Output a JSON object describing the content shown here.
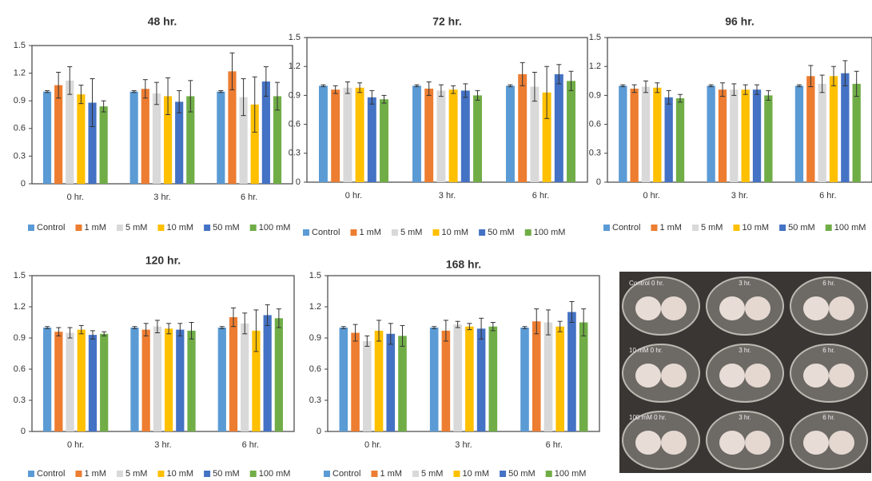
{
  "chart_data": [
    {
      "type": "bar",
      "title": "48 hr.",
      "categories": [
        "0 hr.",
        "3 hr.",
        "6 hr."
      ],
      "ylim": [
        0,
        1.5
      ],
      "yticks": [
        0,
        0.3,
        0.6,
        0.9,
        1.2,
        1.5
      ],
      "series": [
        {
          "name": "Control",
          "color": "#5b9bd5",
          "values": [
            1,
            1,
            1
          ],
          "errors": [
            0.01,
            0.01,
            0.01
          ]
        },
        {
          "name": "1 mM",
          "color": "#ed7d31",
          "values": [
            1.07,
            1.03,
            1.22
          ],
          "errors": [
            0.14,
            0.1,
            0.2
          ]
        },
        {
          "name": "5 mM",
          "color": "#d9d9d9",
          "values": [
            1.12,
            0.98,
            0.94
          ],
          "errors": [
            0.15,
            0.12,
            0.2
          ]
        },
        {
          "name": "10 mM",
          "color": "#ffc000",
          "values": [
            0.97,
            0.95,
            0.86
          ],
          "errors": [
            0.1,
            0.2,
            0.3
          ]
        },
        {
          "name": "50 mM",
          "color": "#4472c4",
          "values": [
            0.88,
            0.89,
            1.11
          ],
          "errors": [
            0.26,
            0.12,
            0.16
          ]
        },
        {
          "name": "100 mM",
          "color": "#70ad47",
          "values": [
            0.84,
            0.95,
            0.95
          ],
          "errors": [
            0.06,
            0.17,
            0.15
          ]
        }
      ]
    },
    {
      "type": "bar",
      "title": "72 hr.",
      "categories": [
        "0 hr.",
        "3 hr.",
        "6 hr."
      ],
      "ylim": [
        0,
        1.5
      ],
      "yticks": [
        0,
        0.3,
        0.6,
        0.9,
        1.2,
        1.5
      ],
      "series": [
        {
          "name": "Control",
          "color": "#5b9bd5",
          "values": [
            1,
            1,
            1
          ],
          "errors": [
            0.01,
            0.01,
            0.01
          ]
        },
        {
          "name": "1 mM",
          "color": "#ed7d31",
          "values": [
            0.96,
            0.97,
            1.12
          ],
          "errors": [
            0.04,
            0.07,
            0.12
          ]
        },
        {
          "name": "5 mM",
          "color": "#d9d9d9",
          "values": [
            0.98,
            0.95,
            0.99
          ],
          "errors": [
            0.06,
            0.06,
            0.15
          ]
        },
        {
          "name": "10 mM",
          "color": "#ffc000",
          "values": [
            0.98,
            0.96,
            0.93
          ],
          "errors": [
            0.05,
            0.04,
            0.27
          ]
        },
        {
          "name": "50 mM",
          "color": "#4472c4",
          "values": [
            0.88,
            0.95,
            1.12
          ],
          "errors": [
            0.07,
            0.07,
            0.1
          ]
        },
        {
          "name": "100 mM",
          "color": "#70ad47",
          "values": [
            0.86,
            0.9,
            1.05
          ],
          "errors": [
            0.04,
            0.05,
            0.1
          ]
        }
      ]
    },
    {
      "type": "bar",
      "title": "96 hr.",
      "categories": [
        "0 hr.",
        "3 hr.",
        "6 hr."
      ],
      "ylim": [
        0,
        1.5
      ],
      "yticks": [
        0,
        0.3,
        0.6,
        0.9,
        1.2,
        1.5
      ],
      "series": [
        {
          "name": "Control",
          "color": "#5b9bd5",
          "values": [
            1,
            1,
            1
          ],
          "errors": [
            0.01,
            0.01,
            0.01
          ]
        },
        {
          "name": "1 mM",
          "color": "#ed7d31",
          "values": [
            0.97,
            0.96,
            1.1
          ],
          "errors": [
            0.04,
            0.07,
            0.11
          ]
        },
        {
          "name": "5 mM",
          "color": "#d9d9d9",
          "values": [
            0.99,
            0.96,
            1.02
          ],
          "errors": [
            0.06,
            0.06,
            0.09
          ]
        },
        {
          "name": "10 mM",
          "color": "#ffc000",
          "values": [
            0.98,
            0.96,
            1.1
          ],
          "errors": [
            0.05,
            0.05,
            0.1
          ]
        },
        {
          "name": "50 mM",
          "color": "#4472c4",
          "values": [
            0.88,
            0.96,
            1.13
          ],
          "errors": [
            0.07,
            0.05,
            0.13
          ]
        },
        {
          "name": "100 mM",
          "color": "#70ad47",
          "values": [
            0.87,
            0.9,
            1.02
          ],
          "errors": [
            0.04,
            0.05,
            0.13
          ]
        }
      ]
    },
    {
      "type": "bar",
      "title": "120 hr.",
      "categories": [
        "0 hr.",
        "3 hr.",
        "6 hr."
      ],
      "ylim": [
        0,
        1.5
      ],
      "yticks": [
        0,
        0.3,
        0.6,
        0.9,
        1.2,
        1.5
      ],
      "series": [
        {
          "name": "Control",
          "color": "#5b9bd5",
          "values": [
            1,
            1,
            1
          ],
          "errors": [
            0.01,
            0.01,
            0.01
          ]
        },
        {
          "name": "1 mM",
          "color": "#ed7d31",
          "values": [
            0.96,
            0.98,
            1.1
          ],
          "errors": [
            0.04,
            0.06,
            0.09
          ]
        },
        {
          "name": "5 mM",
          "color": "#d9d9d9",
          "values": [
            0.95,
            1.01,
            1.04
          ],
          "errors": [
            0.05,
            0.06,
            0.1
          ]
        },
        {
          "name": "10 mM",
          "color": "#ffc000",
          "values": [
            0.98,
            0.99,
            0.97
          ],
          "errors": [
            0.04,
            0.05,
            0.2
          ]
        },
        {
          "name": "50 mM",
          "color": "#4472c4",
          "values": [
            0.93,
            0.98,
            1.12
          ],
          "errors": [
            0.04,
            0.06,
            0.1
          ]
        },
        {
          "name": "100 mM",
          "color": "#70ad47",
          "values": [
            0.94,
            0.97,
            1.09
          ],
          "errors": [
            0.02,
            0.08,
            0.09
          ]
        }
      ]
    },
    {
      "type": "bar",
      "title": "168 hr.",
      "categories": [
        "0 hr.",
        "3 hr.",
        "6 hr."
      ],
      "ylim": [
        0,
        1.5
      ],
      "yticks": [
        0,
        0.3,
        0.6,
        0.9,
        1.2,
        1.5
      ],
      "series": [
        {
          "name": "Control",
          "color": "#5b9bd5",
          "values": [
            1,
            1,
            1
          ],
          "errors": [
            0.01,
            0.01,
            0.01
          ]
        },
        {
          "name": "1 mM",
          "color": "#ed7d31",
          "values": [
            0.95,
            0.97,
            1.06
          ],
          "errors": [
            0.08,
            0.1,
            0.12
          ]
        },
        {
          "name": "5 mM",
          "color": "#d9d9d9",
          "values": [
            0.87,
            1.03,
            1.05
          ],
          "errors": [
            0.05,
            0.03,
            0.12
          ]
        },
        {
          "name": "10 mM",
          "color": "#ffc000",
          "values": [
            0.97,
            1.01,
            1.01
          ],
          "errors": [
            0.1,
            0.03,
            0.05
          ]
        },
        {
          "name": "50 mM",
          "color": "#4472c4",
          "values": [
            0.94,
            0.99,
            1.15
          ],
          "errors": [
            0.1,
            0.1,
            0.1
          ]
        },
        {
          "name": "100 mM",
          "color": "#70ad47",
          "values": [
            0.92,
            1.01,
            1.05
          ],
          "errors": [
            0.1,
            0.04,
            0.13
          ]
        }
      ]
    }
  ],
  "photo": {
    "labels": [
      [
        "Control 0 hr.",
        "3 hr.",
        "6 hr."
      ],
      [
        "10 mM 0 hr.",
        "3 hr.",
        "6 hr."
      ],
      [
        "100 mM 0 hr.",
        "3 hr.",
        "6 hr."
      ]
    ]
  }
}
